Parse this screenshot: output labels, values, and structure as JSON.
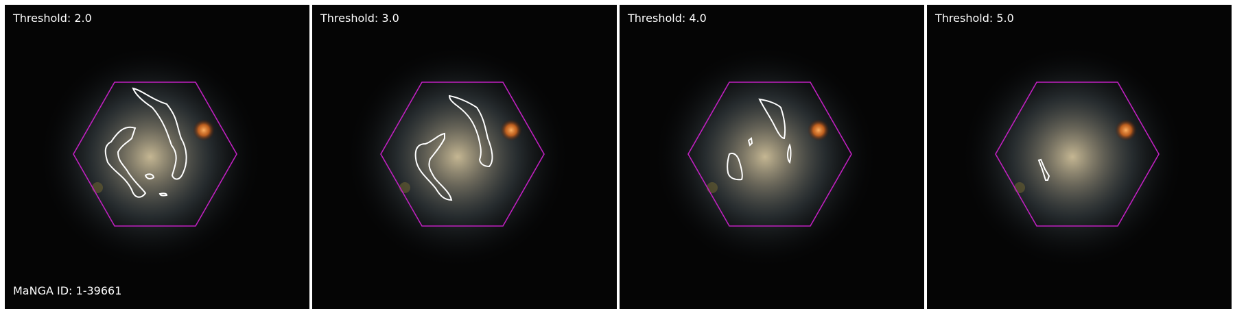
{
  "panels": [
    {
      "threshold_label": "Threshold: 2.0",
      "manga_id": "MaNGA ID: 1-39661"
    },
    {
      "threshold_label": "Threshold: 3.0"
    },
    {
      "threshold_label": "Threshold: 4.0"
    },
    {
      "threshold_label": "Threshold: 5.0"
    }
  ],
  "colors": {
    "hexagon": "#c020c0",
    "contour": "#ffffff",
    "background": "#050505"
  }
}
